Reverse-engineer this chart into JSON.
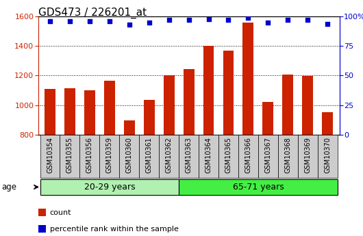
{
  "title": "GDS473 / 226201_at",
  "samples": [
    "GSM10354",
    "GSM10355",
    "GSM10356",
    "GSM10359",
    "GSM10360",
    "GSM10361",
    "GSM10362",
    "GSM10363",
    "GSM10364",
    "GSM10365",
    "GSM10366",
    "GSM10367",
    "GSM10368",
    "GSM10369",
    "GSM10370"
  ],
  "counts": [
    1110,
    1115,
    1100,
    1165,
    895,
    1035,
    1200,
    1245,
    1400,
    1370,
    1560,
    1020,
    1205,
    1195,
    950
  ],
  "percentile_ranks": [
    96,
    96,
    96,
    96,
    93,
    95,
    97,
    97,
    98,
    97,
    99,
    95,
    97,
    97,
    94
  ],
  "groups": [
    "20-29 years",
    "65-71 years"
  ],
  "group_sizes": [
    7,
    8
  ],
  "group_color1": "#b0f0b0",
  "group_color2": "#44ee44",
  "bar_color": "#cc2200",
  "dot_color": "#0000cc",
  "ylim_left": [
    800,
    1600
  ],
  "ylim_right": [
    0,
    100
  ],
  "yticks_left": [
    800,
    1000,
    1200,
    1400,
    1600
  ],
  "yticks_right": [
    0,
    25,
    50,
    75,
    100
  ],
  "plot_bg": "#ffffff",
  "xtick_bg": "#cccccc",
  "grid_color": "#000000",
  "legend_items": [
    "count",
    "percentile rank within the sample"
  ],
  "legend_colors": [
    "#cc2200",
    "#0000cc"
  ],
  "age_label": "age"
}
